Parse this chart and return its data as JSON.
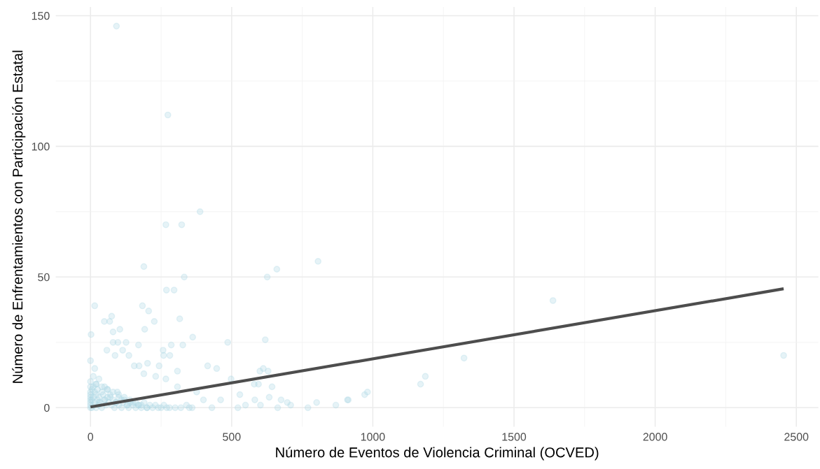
{
  "chart_data": {
    "type": "scatter",
    "xlabel": "Número de Eventos de Violencia Criminal (OCVED)",
    "ylabel": "Número de Enfrentamientos con Participación Estatal",
    "xlim": [
      -123,
      2578
    ],
    "ylim": [
      -7.3,
      153.3
    ],
    "xticks": [
      0,
      500,
      1000,
      1500,
      2000,
      2500
    ],
    "yticks": [
      0,
      50,
      100,
      150
    ],
    "grid": true,
    "series": [
      {
        "marker": "circle",
        "color": "#add8e6",
        "x": [
          92,
          274,
          388,
          267,
          323,
          332,
          269,
          296,
          189,
          806,
          660,
          626,
          15,
          184,
          206,
          316,
          226,
          49,
          68,
          75,
          104,
          80,
          192,
          2,
          362,
          619,
          486,
          80,
          97,
          126,
          170,
          286,
          327,
          58,
          114,
          257,
          259,
          281,
          87,
          136,
          202,
          155,
          172,
          243,
          415,
          447,
          308,
          189,
          600,
          612,
          629,
          498,
          267,
          231,
          308,
          643,
          580,
          595,
          529,
          633,
          675,
          697,
          709,
          801,
          869,
          910,
          971,
          981,
          770,
          663,
          522,
          430,
          461,
          400,
          376,
          549,
          582,
          602,
          1638,
          1323,
          2455,
          1186,
          1169,
          913,
          0,
          0,
          0,
          0,
          0,
          0,
          0,
          0,
          0,
          0,
          5,
          5,
          5,
          10,
          10,
          10,
          10,
          15,
          15,
          15,
          20,
          20,
          20,
          25,
          25,
          30,
          30,
          30,
          35,
          40,
          40,
          45,
          50,
          50,
          55,
          60,
          60,
          65,
          70,
          75,
          80,
          85,
          90,
          95,
          100,
          100,
          110,
          115,
          120,
          130,
          135,
          140,
          150,
          160,
          170,
          180,
          190,
          200,
          210,
          220,
          230,
          240,
          250,
          260,
          270,
          280,
          300,
          320,
          340,
          350,
          360,
          20,
          40,
          60,
          80,
          100,
          120,
          140,
          160,
          180,
          200,
          30,
          50,
          70,
          90,
          110,
          130,
          150,
          170
        ],
        "values": [
          146,
          112,
          75,
          70,
          70,
          50,
          45,
          45,
          54,
          56,
          53,
          50,
          39,
          39,
          37,
          34,
          33,
          33,
          33,
          35,
          30,
          29,
          30,
          28,
          27,
          26,
          25,
          25,
          25,
          25,
          24,
          24,
          24,
          22,
          22,
          22,
          20,
          20,
          20,
          20,
          17,
          16,
          16,
          16,
          16,
          15,
          14,
          13,
          14,
          15,
          14,
          11,
          11,
          12,
          8,
          8,
          9,
          9,
          5,
          4,
          3,
          2,
          1,
          2,
          1,
          3,
          5,
          6,
          0,
          0,
          0,
          0,
          3,
          3,
          6,
          1,
          3,
          1,
          41,
          19,
          20,
          12,
          9,
          3,
          0,
          1,
          2,
          3,
          4,
          5,
          6,
          8,
          10,
          18,
          0,
          3,
          7,
          1,
          4,
          8,
          12,
          2,
          6,
          15,
          0,
          5,
          9,
          3,
          7,
          1,
          4,
          11,
          2,
          6,
          0,
          5,
          3,
          8,
          1,
          4,
          7,
          2,
          5,
          1,
          3,
          0,
          2,
          6,
          1,
          4,
          0,
          2,
          3,
          1,
          0,
          2,
          1,
          0,
          1,
          0,
          2,
          0,
          1,
          0,
          1,
          0,
          0,
          1,
          0,
          0,
          0,
          0,
          1,
          0,
          0,
          9,
          8,
          7,
          6,
          5,
          4,
          3,
          2,
          1,
          0,
          2,
          3,
          4,
          2,
          3,
          1,
          2,
          1
        ]
      },
      {
        "type": "line",
        "color": "#4d4d4d",
        "x": [
          0,
          2455
        ],
        "values": [
          0.3,
          45.5
        ]
      }
    ]
  }
}
